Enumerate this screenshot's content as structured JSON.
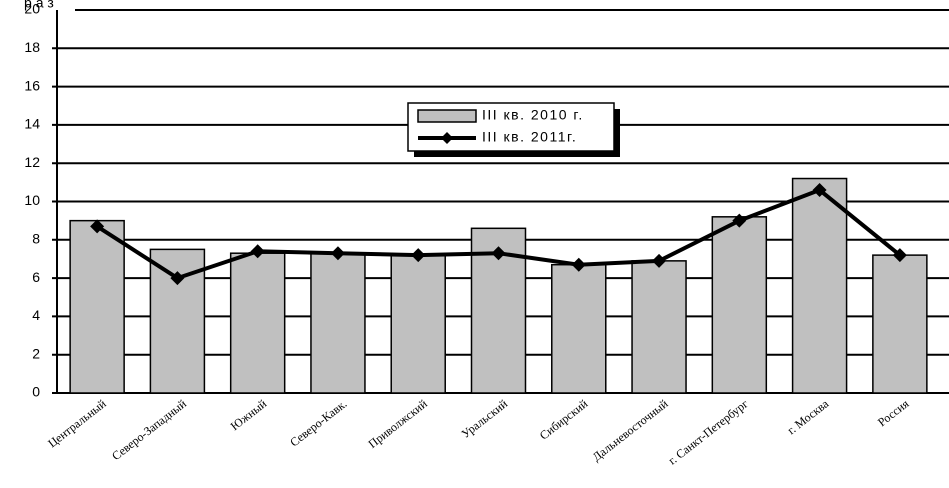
{
  "chart_data": {
    "type": "bar-line",
    "y_label": "раз",
    "categories": [
      "Центральный",
      "Северо-Западный",
      "Южный",
      "Северо-Кавк.",
      "Приволжский",
      "Уральский",
      "Сибирский",
      "Дальневосточный",
      "г. Санкт-Петербург",
      "г. Москва",
      "Россия"
    ],
    "series": [
      {
        "name": "III кв. 2010 г.",
        "type": "bar",
        "color": "#c0c0c0",
        "values": [
          9.0,
          7.5,
          7.3,
          7.3,
          7.2,
          8.6,
          6.7,
          6.9,
          9.2,
          11.2,
          7.2
        ]
      },
      {
        "name": "III кв. 2011г.",
        "type": "line",
        "color": "#000000",
        "values": [
          8.7,
          6.0,
          7.4,
          7.3,
          7.2,
          7.3,
          6.7,
          6.9,
          9.0,
          10.6,
          7.2
        ]
      }
    ],
    "ylim": [
      0,
      20
    ],
    "yticks": [
      0,
      2,
      4,
      6,
      8,
      10,
      12,
      14,
      16,
      18,
      20
    ],
    "grid": true
  }
}
